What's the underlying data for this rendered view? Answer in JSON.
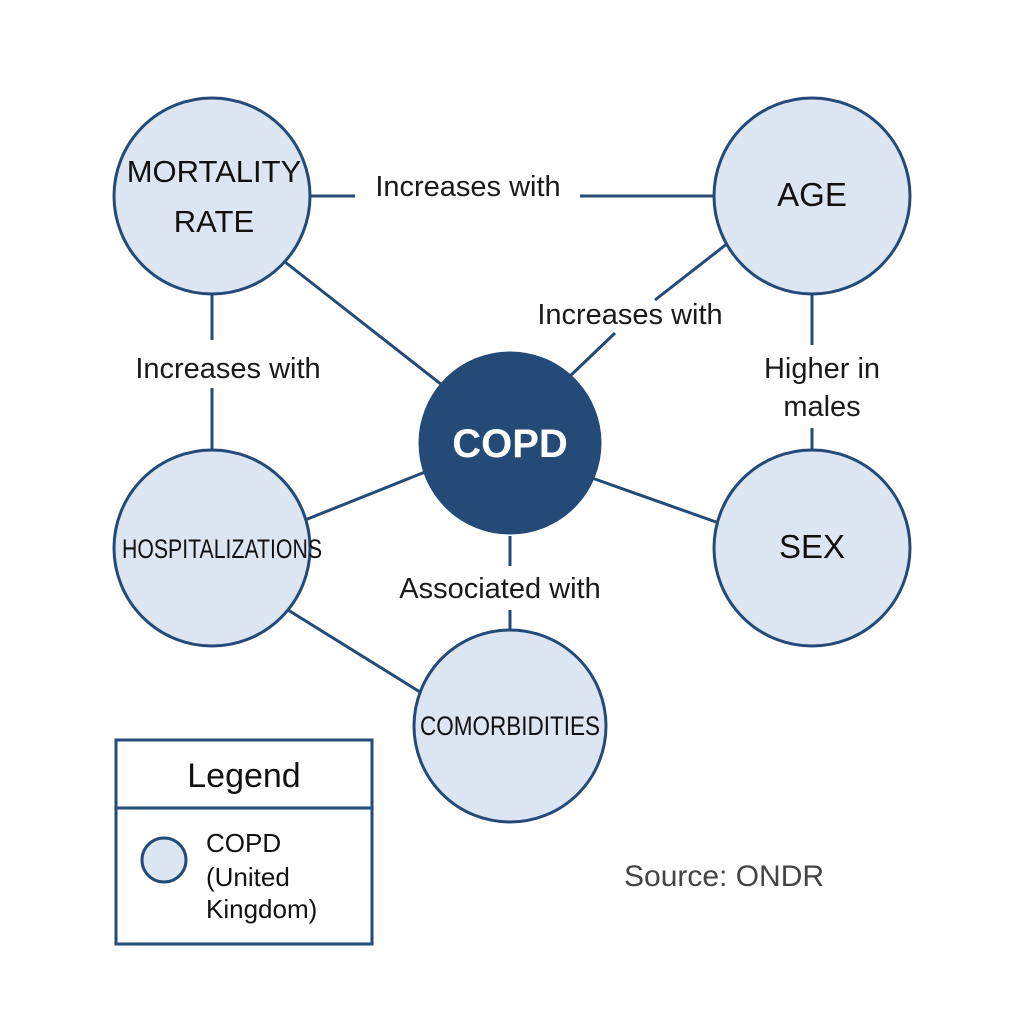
{
  "nodes": {
    "center": {
      "label": "COPD"
    },
    "mortality": {
      "line1": "MORTALITY",
      "line2": "RATE"
    },
    "age": {
      "label": "AGE"
    },
    "sex": {
      "label": "SEX"
    },
    "hospitalizations": {
      "label": "HOSPITALIZATIONS"
    },
    "comorbidities": {
      "label": "COMORBIDITIES"
    }
  },
  "edges": {
    "mortality_age": "Increases with",
    "copd_age": "Increases with",
    "mortality_hosp": "Increases with",
    "age_sex_line1": "Higher in",
    "age_sex_line2": "males",
    "copd_comorbidities": "Associated with"
  },
  "legend": {
    "title": "Legend",
    "item_line1": "COPD",
    "item_line2": "(United",
    "item_line3": "Kingdom)"
  },
  "source": "Source: ONDR",
  "colors": {
    "node_fill": "#dce5f2",
    "node_stroke": "#244a78",
    "center_fill": "#244a78"
  }
}
